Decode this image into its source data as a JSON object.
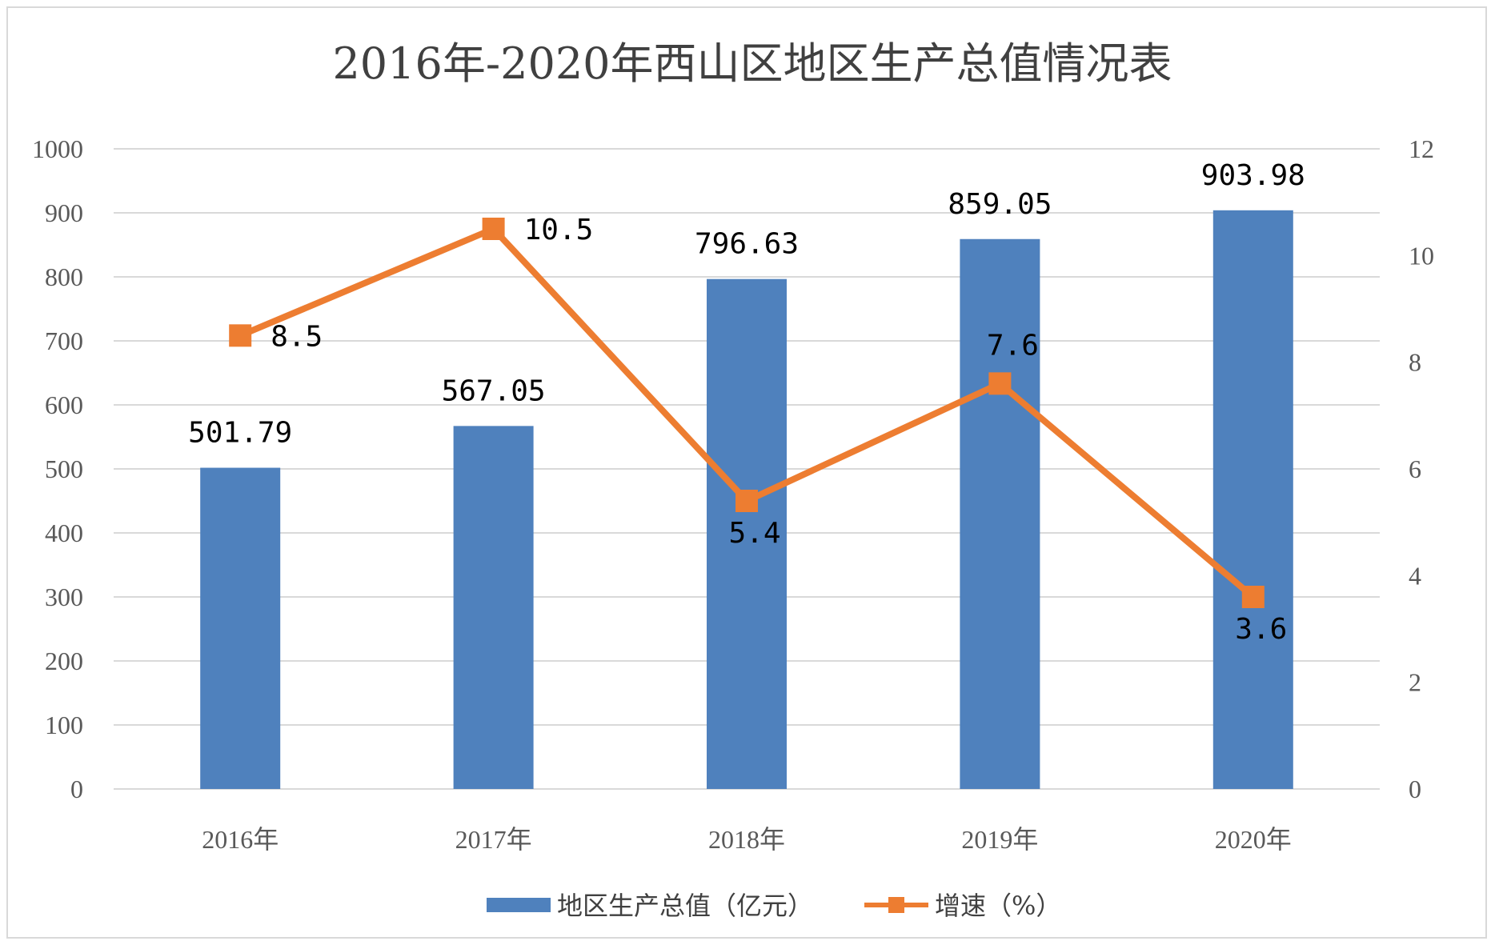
{
  "chart_data": {
    "type": "bar",
    "title": "2016年-2020年西山区地区生产总值情况表",
    "categories": [
      "2016年",
      "2017年",
      "2018年",
      "2019年",
      "2020年"
    ],
    "y_left": {
      "min": 0,
      "max": 1000,
      "step": 100,
      "ticks": [
        "0",
        "100",
        "200",
        "300",
        "400",
        "500",
        "600",
        "700",
        "800",
        "900",
        "1000"
      ]
    },
    "y_right": {
      "min": 0,
      "max": 12,
      "step": 2,
      "ticks": [
        "0",
        "2",
        "4",
        "6",
        "8",
        "10",
        "12"
      ]
    },
    "grid": true,
    "legend_position": "bottom",
    "series": [
      {
        "name": "地区生产总值（亿元）",
        "type": "bar",
        "axis": "left",
        "color": "#4f81bd",
        "values": [
          501.79,
          567.05,
          796.63,
          859.05,
          903.98
        ],
        "labels": [
          "501.79",
          "567.05",
          "796.63",
          "859.05",
          "903.98"
        ]
      },
      {
        "name": "增速（%）",
        "type": "line",
        "axis": "right",
        "color": "#ed7d31",
        "values": [
          8.5,
          10.5,
          5.4,
          7.6,
          3.6
        ],
        "labels": [
          "8.5",
          "10.5",
          "5.4",
          "7.6",
          "3.6"
        ]
      }
    ]
  }
}
